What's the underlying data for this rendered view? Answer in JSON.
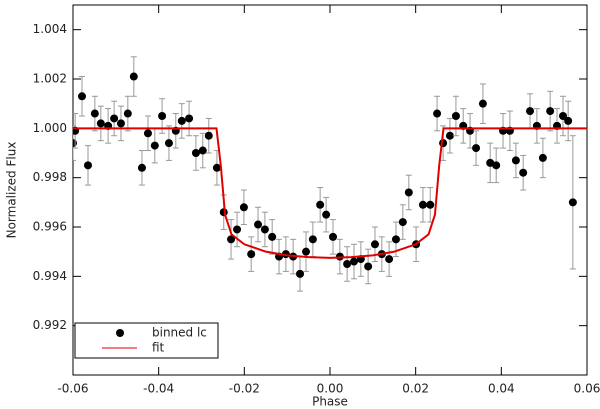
{
  "chart_data": {
    "type": "scatter",
    "xlabel": "Phase",
    "ylabel": "Normalized Flux",
    "xlim": [
      -0.06,
      0.06
    ],
    "ylim": [
      0.99,
      1.005
    ],
    "xticks": [
      -0.06,
      -0.04,
      -0.02,
      {
        "value": 0,
        "label": "0.00"
      },
      0.02,
      0.04,
      0.06
    ],
    "yticks": [
      0.992,
      0.994,
      0.996,
      0.998,
      {
        "value": 1,
        "label": "1.000"
      },
      1.002,
      1.004
    ],
    "legend": "lower left",
    "errorbar_color": "#999999",
    "series": [
      {
        "name": "binned lc",
        "type": "scatter",
        "color": "#000000",
        "x": [
          -0.06,
          -0.0595,
          -0.0579,
          -0.0565,
          -0.0549,
          -0.0535,
          -0.0518,
          -0.0504,
          -0.0488,
          -0.0472,
          -0.0458,
          -0.0439,
          -0.0425,
          -0.0409,
          -0.0392,
          -0.0376,
          -0.036,
          -0.0346,
          -0.0329,
          -0.0313,
          -0.0297,
          -0.0283,
          -0.0264,
          -0.0248,
          -0.0231,
          -0.0217,
          -0.0201,
          -0.0184,
          -0.0168,
          -0.0152,
          -0.0135,
          -0.0119,
          -0.0103,
          -0.0086,
          -0.007,
          -0.0056,
          -0.004,
          -0.0023,
          -0.0009,
          0.0007,
          0.0023,
          0.004,
          0.0056,
          0.0072,
          0.0089,
          0.0105,
          0.0121,
          0.0138,
          0.0154,
          0.017,
          0.0184,
          0.0201,
          0.0217,
          0.0234,
          0.025,
          0.0264,
          0.028,
          0.0294,
          0.0311,
          0.0327,
          0.0341,
          0.0357,
          0.0374,
          0.0388,
          0.0404,
          0.042,
          0.0434,
          0.0451,
          0.0467,
          0.0483,
          0.0497,
          0.0514,
          0.053,
          0.0544,
          0.0556,
          0.0567
        ],
        "values": [
          0.9994,
          0.9999,
          1.0013,
          0.9985,
          1.0006,
          1.0002,
          1.0001,
          1.0004,
          1.0002,
          1.0006,
          1.0021,
          0.9984,
          0.9998,
          0.9993,
          1.0005,
          0.9994,
          0.9999,
          1.0003,
          1.0004,
          0.999,
          0.9991,
          0.9997,
          0.9984,
          0.9966,
          0.9955,
          0.9959,
          0.9968,
          0.9949,
          0.9961,
          0.9959,
          0.9956,
          0.9948,
          0.9949,
          0.9948,
          0.9941,
          0.995,
          0.9955,
          0.9969,
          0.9965,
          0.9956,
          0.9948,
          0.9945,
          0.9946,
          0.9947,
          0.9944,
          0.9953,
          0.9949,
          0.9947,
          0.9955,
          0.9962,
          0.9974,
          0.9953,
          0.9969,
          0.9969,
          1.0006,
          0.9994,
          0.9997,
          1.0005,
          1.0001,
          0.9999,
          0.9992,
          1.001,
          0.9986,
          0.9985,
          0.9999,
          0.9999,
          0.9987,
          0.9982,
          1.0007,
          1.0001,
          0.9988,
          1.0007,
          1.0001,
          1.0005,
          1.0003,
          0.997
        ],
        "errors": [
          0.0007,
          0.0007,
          0.0008,
          0.0008,
          0.0007,
          0.0007,
          0.0007,
          0.0007,
          0.0007,
          0.0007,
          0.0008,
          0.0007,
          0.0007,
          0.0007,
          0.0007,
          0.0007,
          0.0007,
          0.0007,
          0.0007,
          0.0007,
          0.0007,
          0.0007,
          0.0007,
          0.0007,
          0.0008,
          0.0007,
          0.0007,
          0.0007,
          0.0007,
          0.0007,
          0.0007,
          0.0007,
          0.0007,
          0.0007,
          0.0007,
          0.0008,
          0.0007,
          0.0007,
          0.0007,
          0.0007,
          0.0007,
          0.0007,
          0.0007,
          0.0007,
          0.0007,
          0.0007,
          0.0007,
          0.0007,
          0.0007,
          0.0007,
          0.0007,
          0.0007,
          0.0007,
          0.0007,
          0.0007,
          0.0007,
          0.0007,
          0.0008,
          0.0007,
          0.0007,
          0.0007,
          0.0008,
          0.0008,
          0.0007,
          0.0007,
          0.0008,
          0.0007,
          0.0007,
          0.0007,
          0.0007,
          0.0008,
          0.0008,
          0.0007,
          0.0008,
          0.0008,
          0.0027
        ]
      },
      {
        "name": "fit",
        "type": "line",
        "color": "#e00000",
        "x": [
          -0.06,
          -0.0265,
          -0.0255,
          -0.0245,
          -0.023,
          -0.02,
          -0.015,
          -0.01,
          -0.005,
          0,
          0.005,
          0.01,
          0.015,
          0.02,
          0.023,
          0.0245,
          0.0255,
          0.0265,
          0.06
        ],
        "values": [
          1.0,
          1.0,
          0.9985,
          0.9965,
          0.9957,
          0.9953,
          0.995,
          0.99485,
          0.99478,
          0.99475,
          0.99478,
          0.99485,
          0.995,
          0.9953,
          0.9957,
          0.9965,
          0.9985,
          1.0,
          1.0
        ]
      }
    ]
  }
}
